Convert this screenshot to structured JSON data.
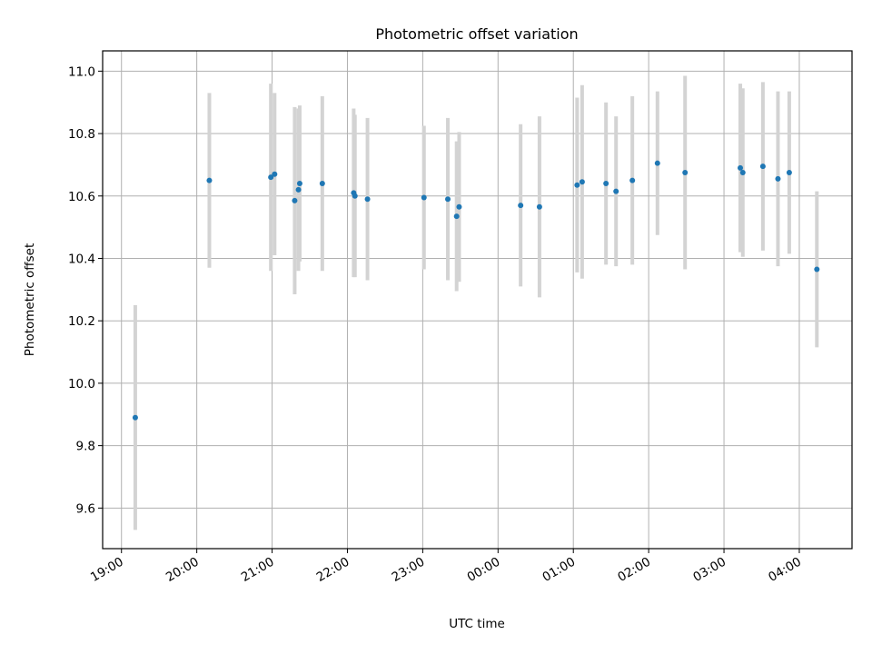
{
  "chart_data": {
    "type": "scatter",
    "title": "Photometric offset variation",
    "xlabel": "UTC time",
    "ylabel": "Photometric offset",
    "x_ticks": [
      "19:00",
      "20:00",
      "21:00",
      "22:00",
      "23:00",
      "00:00",
      "01:00",
      "02:00",
      "03:00",
      "04:00"
    ],
    "x_range_hours": [
      18.75,
      28.7
    ],
    "y_ticks": [
      "9.6",
      "9.8",
      "10.0",
      "10.2",
      "10.4",
      "10.6",
      "10.8",
      "11.0"
    ],
    "ylim": [
      9.47,
      11.065
    ],
    "grid": true,
    "colors": {
      "point": "#1f77b4",
      "errorbar": "#d3d3d3",
      "grid": "#b0b0b0"
    },
    "points": [
      {
        "x": "19:11",
        "y": 9.89,
        "err": 0.36
      },
      {
        "x": "20:10",
        "y": 10.65,
        "err": 0.28
      },
      {
        "x": "20:59",
        "y": 10.66,
        "err": 0.3
      },
      {
        "x": "21:02",
        "y": 10.67,
        "err": 0.26
      },
      {
        "x": "21:18",
        "y": 10.585,
        "err": 0.3
      },
      {
        "x": "21:21",
        "y": 10.62,
        "err": 0.26
      },
      {
        "x": "21:22",
        "y": 10.64,
        "err": 0.25
      },
      {
        "x": "21:40",
        "y": 10.64,
        "err": 0.28
      },
      {
        "x": "22:05",
        "y": 10.61,
        "err": 0.27
      },
      {
        "x": "22:06",
        "y": 10.6,
        "err": 0.26
      },
      {
        "x": "22:16",
        "y": 10.59,
        "err": 0.26
      },
      {
        "x": "23:01",
        "y": 10.595,
        "err": 0.23
      },
      {
        "x": "23:20",
        "y": 10.59,
        "err": 0.26
      },
      {
        "x": "23:27",
        "y": 10.535,
        "err": 0.24
      },
      {
        "x": "23:29",
        "y": 10.565,
        "err": 0.24
      },
      {
        "x": "00:18",
        "y": 10.57,
        "err": 0.26
      },
      {
        "x": "00:33",
        "y": 10.565,
        "err": 0.29
      },
      {
        "x": "01:03",
        "y": 10.635,
        "err": 0.28
      },
      {
        "x": "01:07",
        "y": 10.645,
        "err": 0.31
      },
      {
        "x": "01:26",
        "y": 10.64,
        "err": 0.26
      },
      {
        "x": "01:34",
        "y": 10.615,
        "err": 0.24
      },
      {
        "x": "01:47",
        "y": 10.65,
        "err": 0.27
      },
      {
        "x": "02:07",
        "y": 10.705,
        "err": 0.23
      },
      {
        "x": "02:29",
        "y": 10.675,
        "err": 0.31
      },
      {
        "x": "03:13",
        "y": 10.69,
        "err": 0.27
      },
      {
        "x": "03:15",
        "y": 10.675,
        "err": 0.27
      },
      {
        "x": "03:31",
        "y": 10.695,
        "err": 0.27
      },
      {
        "x": "03:43",
        "y": 10.655,
        "err": 0.28
      },
      {
        "x": "03:52",
        "y": 10.675,
        "err": 0.26
      },
      {
        "x": "04:14",
        "y": 10.365,
        "err": 0.25
      }
    ]
  }
}
